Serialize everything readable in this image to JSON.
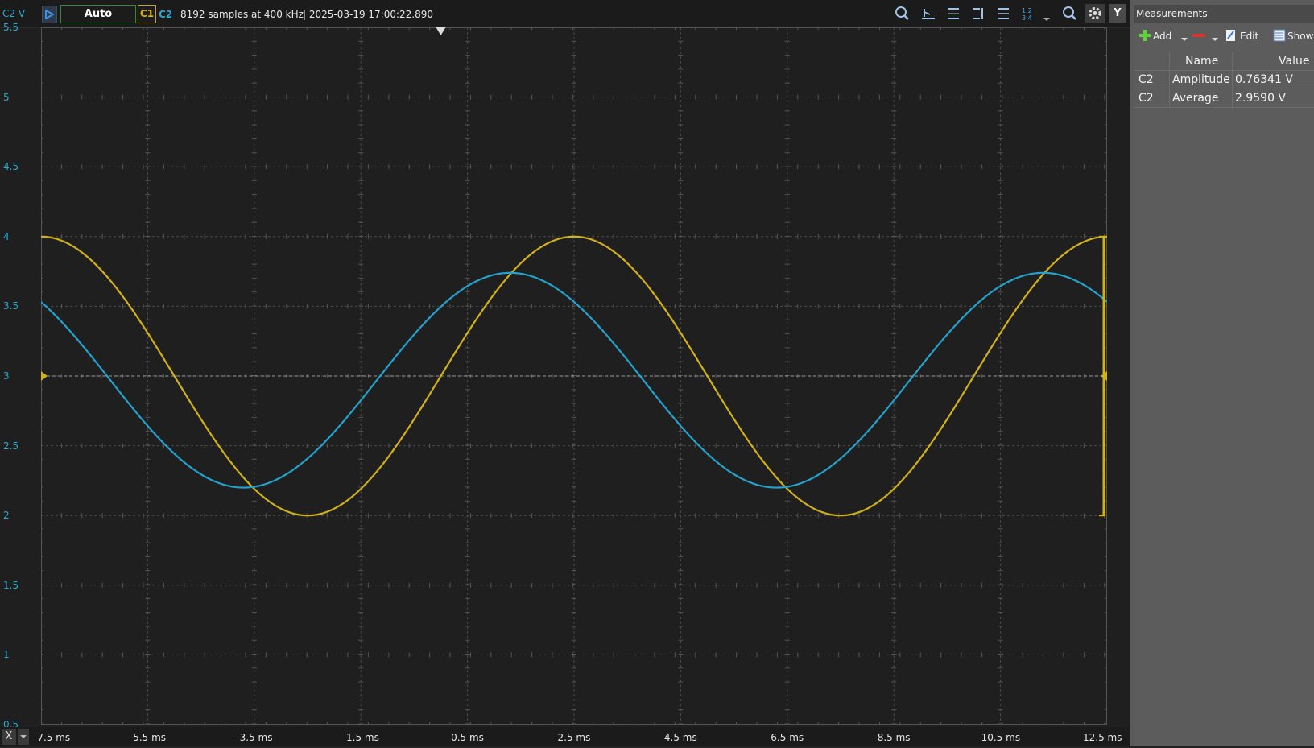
{
  "toolbar": {
    "y_axis_channel_label": "C2 V",
    "trigger_mode": "Auto",
    "channel1": "C1",
    "channel2": "C2",
    "samples_info": "8192 samples at 400 kHz",
    "timestamp": "| 2025-03-19 17:00:22.890",
    "y_button": "Y",
    "icons": [
      "zoom-icon",
      "cursor-horizontal-icon",
      "cursor-h-range-icon",
      "cursor-v-icon",
      "cursor-vertical-icon",
      "channels-grid-icon",
      "dropdown-icon",
      "magnify-icon",
      "settings-icon"
    ]
  },
  "y_axis": {
    "ticks": [
      "5.5",
      "5",
      "4.5",
      "4",
      "3.5",
      "3",
      "2.5",
      "2",
      "1.5",
      "1",
      "0.5"
    ]
  },
  "x_axis": {
    "button": "X",
    "ticks": [
      "-7.5 ms",
      "-5.5 ms",
      "-3.5 ms",
      "-1.5 ms",
      "0.5 ms",
      "2.5 ms",
      "4.5 ms",
      "6.5 ms",
      "8.5 ms",
      "10.5 ms",
      "12.5 ms"
    ]
  },
  "colors": {
    "c1": "#d1b118",
    "c2": "#22a2cc",
    "grid": "#4a4a4a",
    "background": "#1f1f1f"
  },
  "chart_data": {
    "type": "line",
    "x_unit": "ms",
    "y_unit": "V",
    "xlim": [
      -7.5,
      12.5
    ],
    "ylim": [
      0.5,
      5.5
    ],
    "series": [
      {
        "name": "C1",
        "shape": "sine",
        "period_ms": 10,
        "min": 2.0,
        "max": 4.0,
        "peak_at_ms": 2.5
      },
      {
        "name": "C2",
        "shape": "sine",
        "period_ms": 10,
        "min": 2.2,
        "max": 3.74,
        "peak_at_ms": 1.3
      }
    ],
    "trigger_level": 3.0
  },
  "measurements": {
    "title": "Measurements",
    "toolbar": {
      "add": "Add",
      "edit": "Edit",
      "show": "Show"
    },
    "columns": [
      "Name",
      "Value"
    ],
    "rows": [
      {
        "channel": "C2",
        "name": "Amplitude",
        "value": "0.76341 V"
      },
      {
        "channel": "C2",
        "name": "Average",
        "value": "2.9590 V"
      }
    ]
  }
}
